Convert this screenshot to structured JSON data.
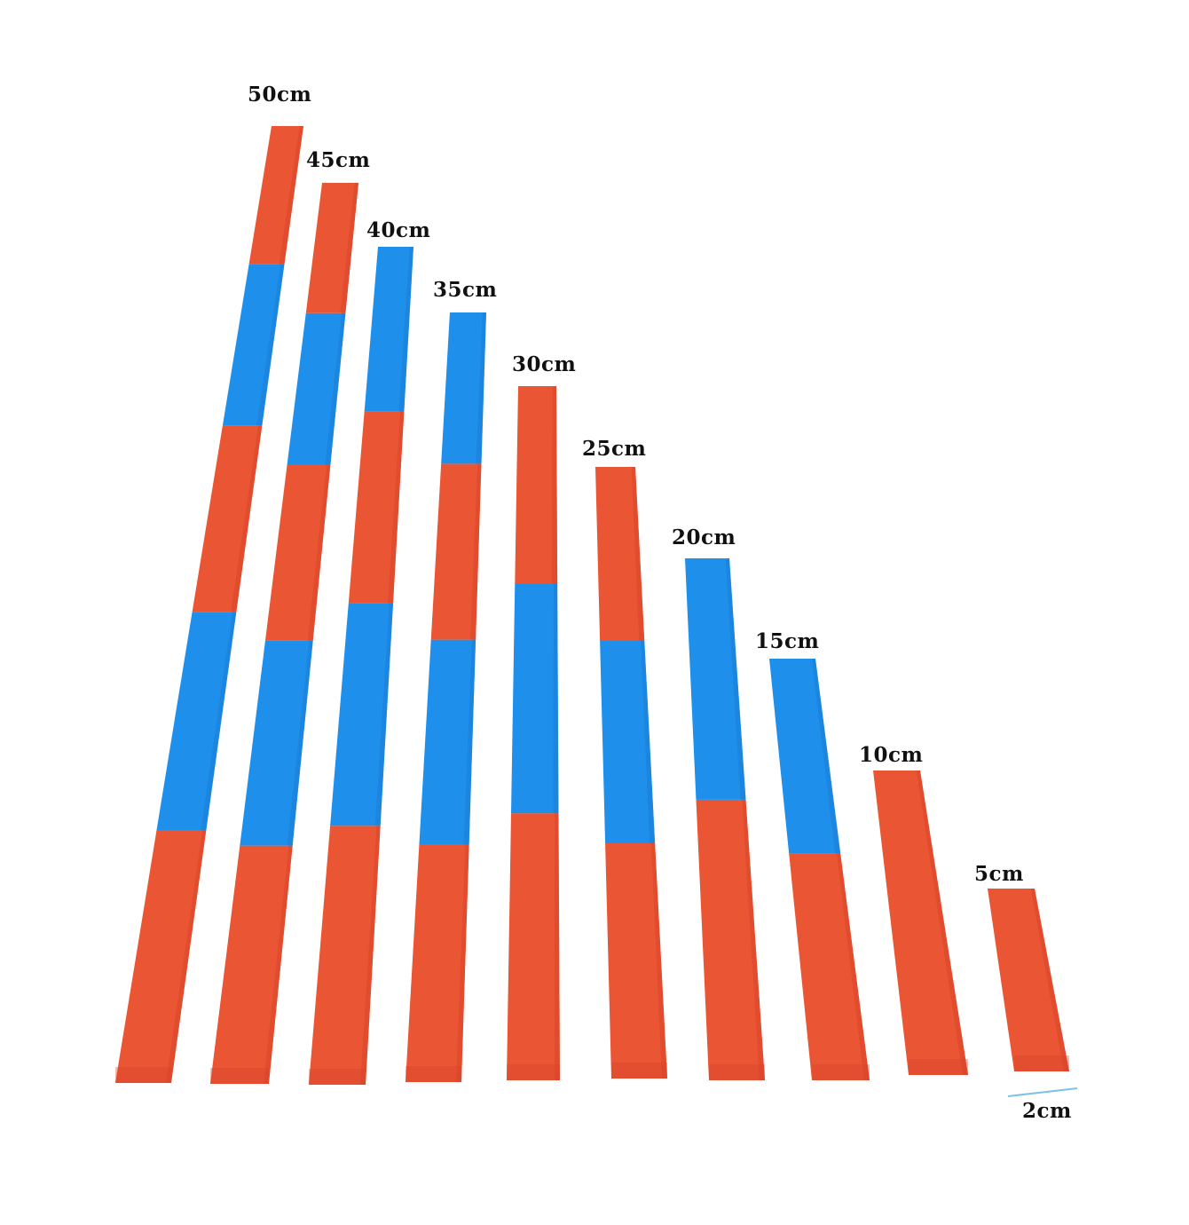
{
  "photo": {
    "subject": "number rods",
    "colors": {
      "background": "#ffffff",
      "red_face": "#ea5533",
      "red_side": "#d8432a",
      "blue_face": "#1e8fea",
      "blue_side": "#1a7dd6",
      "label_text": "#111111",
      "width_marker": "#7cc3ea"
    }
  },
  "rods": [
    {
      "label": "50cm",
      "length_cm": 50,
      "segments": 5
    },
    {
      "label": "45cm",
      "length_cm": 45,
      "segments": 5
    },
    {
      "label": "40cm",
      "length_cm": 40,
      "segments": 4
    },
    {
      "label": "35cm",
      "length_cm": 35,
      "segments": 4
    },
    {
      "label": "30cm",
      "length_cm": 30,
      "segments": 3
    },
    {
      "label": "25cm",
      "length_cm": 25,
      "segments": 3
    },
    {
      "label": "20cm",
      "length_cm": 20,
      "segments": 2
    },
    {
      "label": "15cm",
      "length_cm": 15,
      "segments": 2
    },
    {
      "label": "10cm",
      "length_cm": 10,
      "segments": 1
    },
    {
      "label": "5cm",
      "length_cm": 5,
      "segments": 1
    }
  ],
  "width_marker": {
    "label": "2cm",
    "width_cm": 2
  }
}
